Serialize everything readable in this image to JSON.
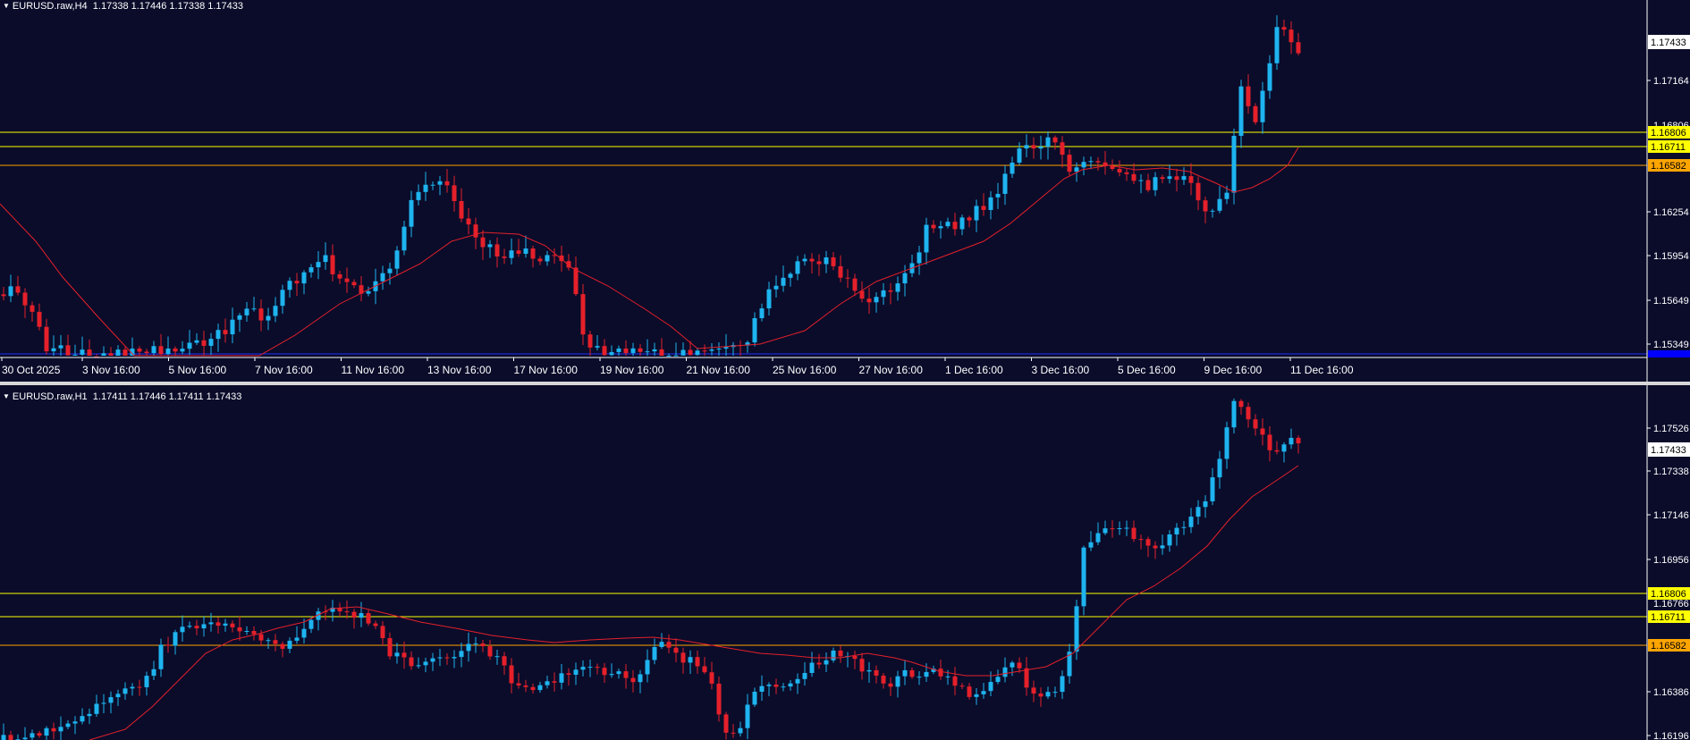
{
  "symbol": "EURUSD.raw",
  "pane_h4": {
    "timeframe": "H4",
    "title": "EURUSD.raw,H4",
    "ohlc": "1.17338 1.17446 1.17338 1.17433",
    "price_ticks": [
      "1.17164",
      "1.16254",
      "1.15954",
      "1.15649",
      "1.15349"
    ],
    "price_ticks_partial": [
      "1.16806"
    ],
    "current_price": "1.17433",
    "levels": [
      {
        "label": "1.16806",
        "color": "#ffff00",
        "text_color": "#000000"
      },
      {
        "label": "1.16711",
        "color": "#ffff00",
        "text_color": "#000000"
      },
      {
        "label": "1.16582",
        "color": "#ffa500",
        "text_color": "#000000"
      }
    ],
    "time_labels": [
      "30 Oct 2025",
      "3 Nov 16:00",
      "5 Nov 16:00",
      "7 Nov 16:00",
      "11 Nov 16:00",
      "13 Nov 16:00",
      "17 Nov 16:00",
      "19 Nov 16:00",
      "21 Nov 16:00",
      "25 Nov 16:00",
      "27 Nov 16:00",
      "1 Dec 16:00",
      "3 Dec 16:00",
      "5 Dec 16:00",
      "9 Dec 16:00",
      "11 Dec 16:00"
    ],
    "bottom_marker_color": "#0000ff"
  },
  "pane_h1": {
    "timeframe": "H1",
    "title": "EURUSD.raw,H1",
    "ohlc": "1.17411 1.17446 1.17411 1.17433",
    "price_ticks": [
      "1.17526",
      "1.17338",
      "1.17146",
      "1.16956",
      "1.16386",
      "1.16196"
    ],
    "price_ticks_partial": [
      "1.16766"
    ],
    "current_price": "1.17433",
    "levels": [
      {
        "label": "1.16806",
        "color": "#ffff00",
        "text_color": "#000000"
      },
      {
        "label": "1.16711",
        "color": "#ffff00",
        "text_color": "#000000"
      },
      {
        "label": "1.16582",
        "color": "#ffa500",
        "text_color": "#000000"
      }
    ]
  },
  "colors": {
    "background": "#0a0c2a",
    "bull": "#1eb4ef",
    "bear": "#e5202a",
    "ma": "#e5202a",
    "text": "#ffffff",
    "level_line": "#ffff00",
    "separator": "#d8d8d8"
  },
  "icons": {
    "pane_menu": "triangle-down-icon"
  }
}
